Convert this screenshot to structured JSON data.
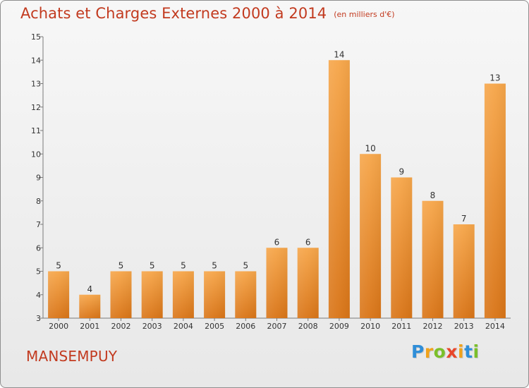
{
  "title": "Achats et Charges Externes 2000 à 2014",
  "unit": "(en milliers d'€)",
  "commune": "MANSEMPUY",
  "logo": {
    "letters": [
      "P",
      "r",
      "o",
      "x",
      "i",
      "t",
      "i"
    ],
    "colors": [
      "#2f8ed8",
      "#f0a21b",
      "#7bbf2a",
      "#e8462a",
      "#f0a21b",
      "#2f8ed8",
      "#7bbf2a"
    ]
  },
  "colors": {
    "title": "#c23a1f",
    "bar": "#f39c39",
    "bar_dark": "#d87318"
  },
  "chart_data": {
    "type": "bar",
    "title": "Achats et Charges Externes 2000 à 2014",
    "subtitle": "(en milliers d'€)",
    "categories": [
      "2000",
      "2001",
      "2002",
      "2003",
      "2004",
      "2005",
      "2006",
      "2007",
      "2008",
      "2009",
      "2010",
      "2011",
      "2012",
      "2013",
      "2014"
    ],
    "values": [
      5,
      4,
      5,
      5,
      5,
      5,
      5,
      6,
      6,
      14,
      10,
      9,
      8,
      7,
      13
    ],
    "ylim": [
      3,
      15
    ],
    "yticks": [
      3,
      4,
      5,
      6,
      7,
      8,
      9,
      10,
      11,
      12,
      13,
      14,
      15
    ],
    "grid": false,
    "data_labels": true
  }
}
